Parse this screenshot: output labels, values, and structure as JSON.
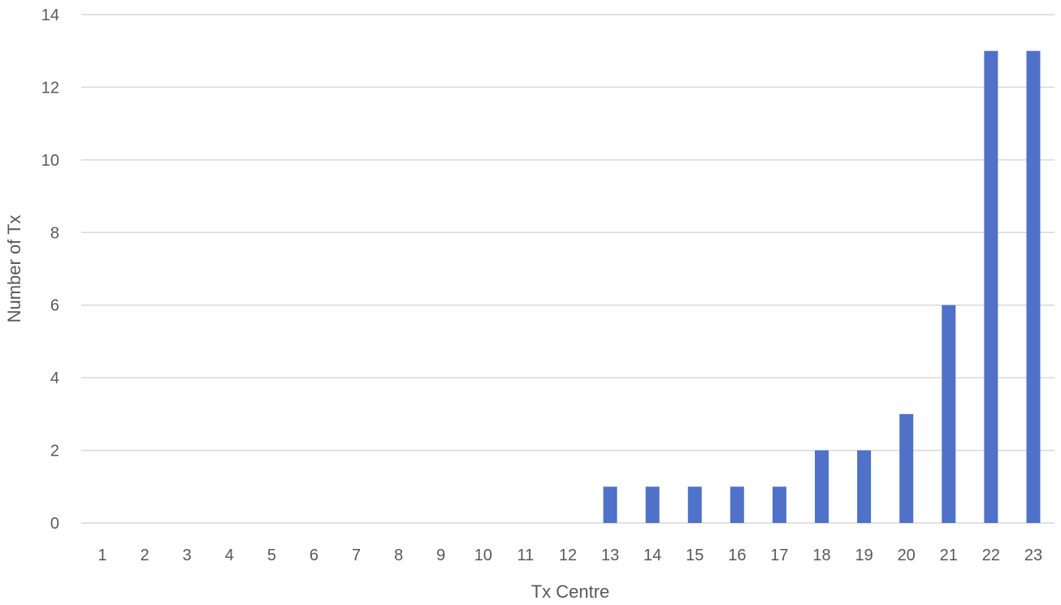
{
  "chart_data": {
    "type": "bar",
    "title": "",
    "xlabel": "Tx Centre",
    "ylabel": "Number of Tx",
    "categories": [
      "1",
      "2",
      "3",
      "4",
      "5",
      "6",
      "7",
      "8",
      "9",
      "10",
      "11",
      "12",
      "13",
      "14",
      "15",
      "16",
      "17",
      "18",
      "19",
      "20",
      "21",
      "22",
      "23"
    ],
    "series": [
      {
        "values": [
          0,
          0,
          0,
          0,
          0,
          0,
          0,
          0,
          0,
          0,
          0,
          0,
          1,
          1,
          1,
          1,
          1,
          2,
          2,
          3,
          6,
          13,
          13
        ]
      }
    ],
    "ylim": [
      0,
      14
    ],
    "yticks": [
      0,
      2,
      4,
      6,
      8,
      10,
      12,
      14
    ],
    "grid": "horizontal",
    "bar_color": "#4f72c8",
    "gridline_color": "#d9d9d9",
    "text_color": "#595959"
  }
}
